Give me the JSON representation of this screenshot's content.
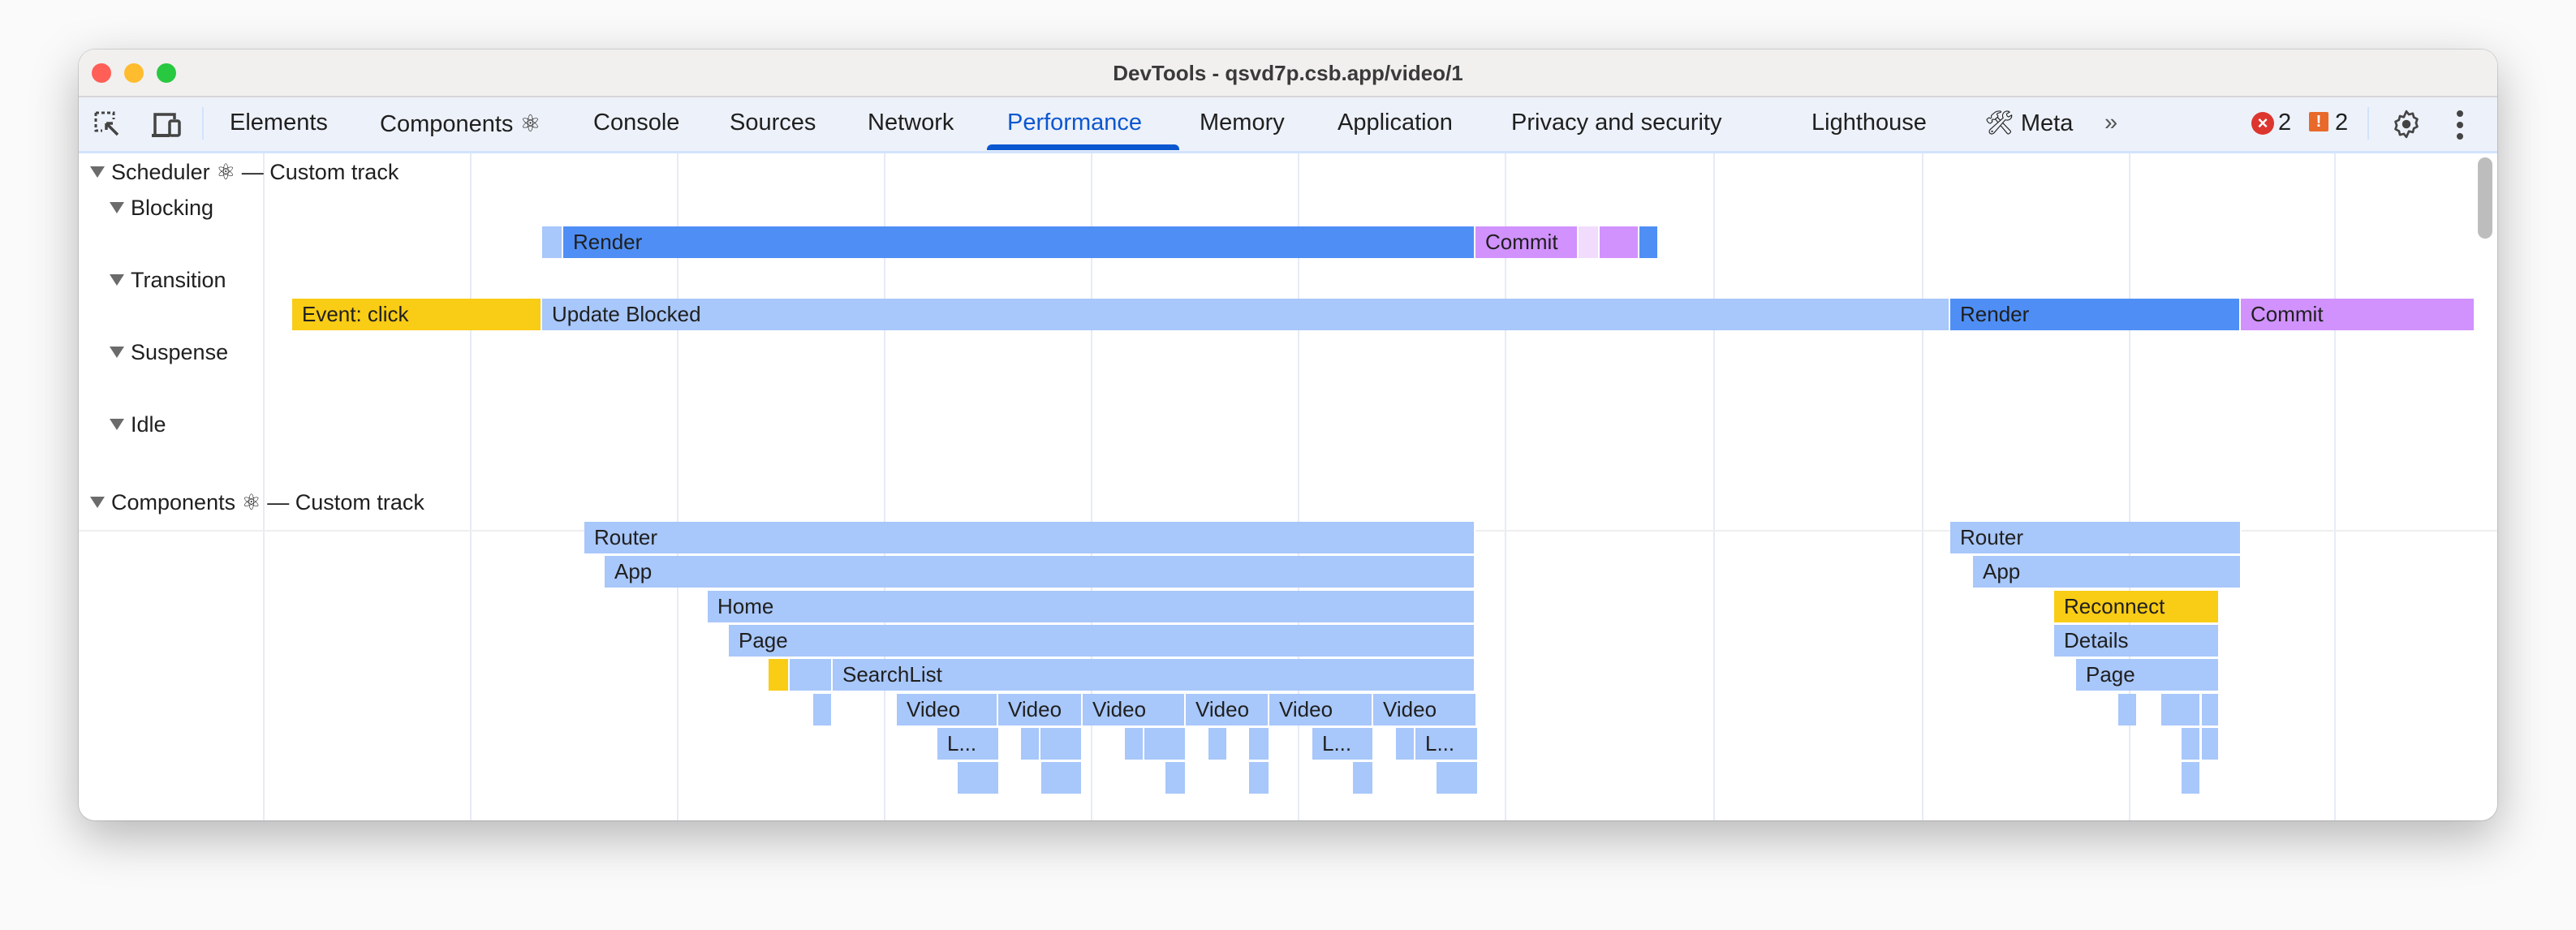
{
  "window": {
    "title": "DevTools - qsvd7p.csb.app/video/1"
  },
  "toolbar": {
    "tabs": [
      {
        "label": "Elements"
      },
      {
        "label": "Components ⚛"
      },
      {
        "label": "Console"
      },
      {
        "label": "Sources"
      },
      {
        "label": "Network"
      },
      {
        "label": "Performance",
        "active": true
      },
      {
        "label": "Memory"
      },
      {
        "label": "Application"
      },
      {
        "label": "Privacy and security"
      },
      {
        "label": "Lighthouse"
      },
      {
        "label": "Meta",
        "icon": "hammer-wrench-icon"
      }
    ],
    "more_tabs": "»",
    "errors_count": "2",
    "warnings_count": "2"
  },
  "colors": {
    "accent": "#0b57d0",
    "render": "#4f8ff5",
    "light": "#a8c7fa",
    "yellow": "#f9cc15",
    "commit": "#d192fd",
    "pale": "#f1dcfd"
  },
  "scheduler": {
    "title": "Scheduler ⚛ — Custom track",
    "lanes": [
      "Blocking",
      "Transition",
      "Suspense",
      "Idle"
    ],
    "blocking_bars": [
      {
        "label": "",
        "color": "light"
      },
      {
        "label": "Render",
        "color": "render"
      },
      {
        "label": "Commit",
        "color": "commit"
      },
      {
        "label": "",
        "color": "pale"
      },
      {
        "label": "",
        "color": "commit"
      },
      {
        "label": "",
        "color": "render"
      }
    ],
    "transition_bars": [
      {
        "label": "Event: click",
        "color": "yellow"
      },
      {
        "label": "Update Blocked",
        "color": "light"
      },
      {
        "label": "Render",
        "color": "render"
      },
      {
        "label": "Commit",
        "color": "commit"
      }
    ]
  },
  "components": {
    "title": "Components ⚛ — Custom track",
    "bars": [
      {
        "label": "Router",
        "color": "light"
      },
      {
        "label": "App",
        "color": "light"
      },
      {
        "label": "Home",
        "color": "light"
      },
      {
        "label": "Page",
        "color": "light"
      },
      {
        "label": "",
        "color": "yellow"
      },
      {
        "label": "",
        "color": "light"
      },
      {
        "label": "SearchList",
        "color": "light"
      },
      {
        "label": "",
        "color": "light"
      },
      {
        "label": "Video",
        "color": "light"
      },
      {
        "label": "Video",
        "color": "light"
      },
      {
        "label": "Video",
        "color": "light"
      },
      {
        "label": "Video",
        "color": "light"
      },
      {
        "label": "Video",
        "color": "light"
      },
      {
        "label": "Video",
        "color": "light"
      },
      {
        "label": "L...",
        "color": "light"
      },
      {
        "label": "",
        "color": "light"
      },
      {
        "label": "",
        "color": "light"
      },
      {
        "label": "",
        "color": "light"
      },
      {
        "label": "",
        "color": "light"
      },
      {
        "label": "",
        "color": "light"
      },
      {
        "label": "",
        "color": "light"
      },
      {
        "label": "L...",
        "color": "light"
      },
      {
        "label": "",
        "color": "light"
      },
      {
        "label": "L...",
        "color": "light"
      },
      {
        "label": "",
        "color": "light"
      },
      {
        "label": "",
        "color": "light"
      },
      {
        "label": "",
        "color": "light"
      },
      {
        "label": "",
        "color": "light"
      },
      {
        "label": "",
        "color": "light"
      },
      {
        "label": "",
        "color": "light"
      },
      {
        "label": "Router",
        "color": "light"
      },
      {
        "label": "App",
        "color": "light"
      },
      {
        "label": "Reconnect",
        "color": "yellow"
      },
      {
        "label": "Details",
        "color": "light"
      },
      {
        "label": "Page",
        "color": "light"
      },
      {
        "label": "",
        "color": "light"
      },
      {
        "label": "",
        "color": "light"
      },
      {
        "label": "",
        "color": "light"
      },
      {
        "label": "",
        "color": "light"
      },
      {
        "label": "",
        "color": "light"
      },
      {
        "label": "",
        "color": "light"
      }
    ]
  }
}
